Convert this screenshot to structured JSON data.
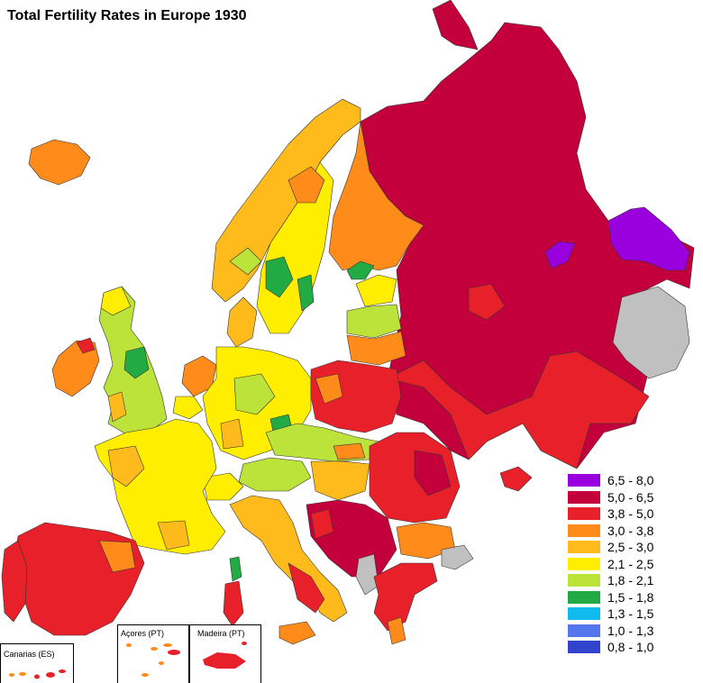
{
  "title": "Total Fertility Rates in Europe 1930",
  "legend": [
    {
      "label": "6,5 - 8,0",
      "color": "#9900dd"
    },
    {
      "label": "5,0 - 6,5",
      "color": "#c4003c"
    },
    {
      "label": "3,8 - 5,0",
      "color": "#e8202a"
    },
    {
      "label": "3,0 - 3,8",
      "color": "#ff8c1a"
    },
    {
      "label": "2,5 - 3,0",
      "color": "#ffbb1c"
    },
    {
      "label": "2,1 - 2,5",
      "color": "#ffee00"
    },
    {
      "label": "1,8 - 2,1",
      "color": "#bbe33a"
    },
    {
      "label": "1,5 - 1,8",
      "color": "#22aa44"
    },
    {
      "label": "1,3 - 1,5",
      "color": "#11bbee"
    },
    {
      "label": "1,0 - 1,3",
      "color": "#5577ee"
    },
    {
      "label": "0,8 - 1,0",
      "color": "#3344cc"
    }
  ],
  "no_data_color": "#c0c0c0",
  "insets": {
    "canarias": "Canarias (ES)",
    "acores": "Açores (PT)",
    "madeira": "Madeira (PT)"
  }
}
